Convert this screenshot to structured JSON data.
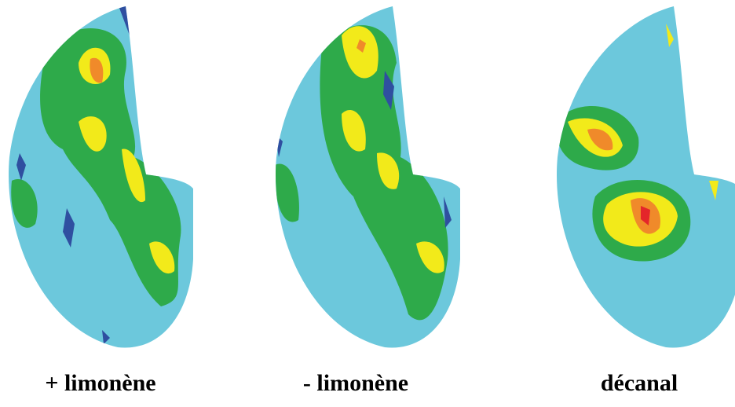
{
  "panels": [
    {
      "label": "+ limonène"
    },
    {
      "label": "- limonène"
    },
    {
      "label": "décanal"
    }
  ]
}
